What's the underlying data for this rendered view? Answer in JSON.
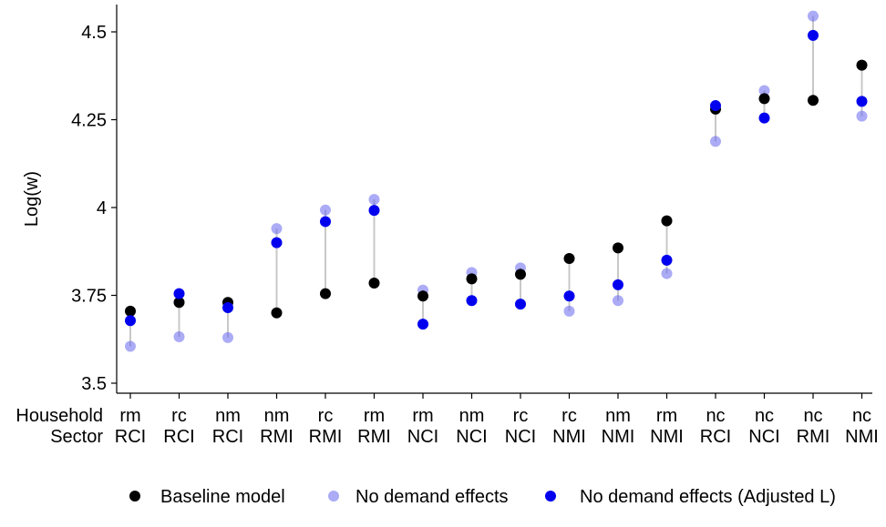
{
  "chart_data": {
    "type": "scatter",
    "title": "",
    "ylabel": "Log(w)",
    "xlabel": "",
    "ylim": [
      3.5,
      4.58
    ],
    "yticks": [
      3.5,
      3.75,
      4,
      4.25,
      4.5
    ],
    "ytick_labels": [
      "3.5",
      "3.75",
      "4",
      "4.25",
      "4.5"
    ],
    "grid": false,
    "legend_position": "bottom",
    "row_labels": {
      "household": "Household",
      "sector": "Sector"
    },
    "categories": [
      {
        "household": "rm",
        "sector": "RCI"
      },
      {
        "household": "rc",
        "sector": "RCI"
      },
      {
        "household": "nm",
        "sector": "RCI"
      },
      {
        "household": "nm",
        "sector": "RMI"
      },
      {
        "household": "rc",
        "sector": "RMI"
      },
      {
        "household": "rm",
        "sector": "RMI"
      },
      {
        "household": "rm",
        "sector": "NCI"
      },
      {
        "household": "nm",
        "sector": "NCI"
      },
      {
        "household": "rc",
        "sector": "NCI"
      },
      {
        "household": "rc",
        "sector": "NMI"
      },
      {
        "household": "nm",
        "sector": "NMI"
      },
      {
        "household": "rm",
        "sector": "NMI"
      },
      {
        "household": "nc",
        "sector": "RCI"
      },
      {
        "household": "nc",
        "sector": "NCI"
      },
      {
        "household": "nc",
        "sector": "RMI"
      },
      {
        "household": "nc",
        "sector": "NMI"
      }
    ],
    "series": [
      {
        "name": "Baseline model",
        "color": "#000000",
        "opacity": 1,
        "values": [
          3.705,
          3.73,
          3.73,
          3.7,
          3.755,
          3.785,
          3.748,
          3.797,
          3.81,
          3.855,
          3.885,
          3.962,
          4.28,
          4.31,
          4.305,
          4.405
        ]
      },
      {
        "name": "No demand effects",
        "color": "#6666ee",
        "opacity": 0.55,
        "values": [
          3.605,
          3.632,
          3.63,
          3.94,
          3.993,
          4.023,
          3.765,
          3.815,
          3.828,
          3.705,
          3.735,
          3.812,
          4.188,
          4.333,
          4.545,
          4.26
        ]
      },
      {
        "name": "No demand effects (Adjusted L)",
        "color": "#0000ee",
        "opacity": 1,
        "values": [
          3.678,
          3.755,
          3.715,
          3.9,
          3.96,
          3.992,
          3.668,
          3.735,
          3.725,
          3.748,
          3.78,
          3.85,
          4.29,
          4.255,
          4.49,
          4.302
        ]
      }
    ],
    "connector_color": "#c8c8c8"
  }
}
